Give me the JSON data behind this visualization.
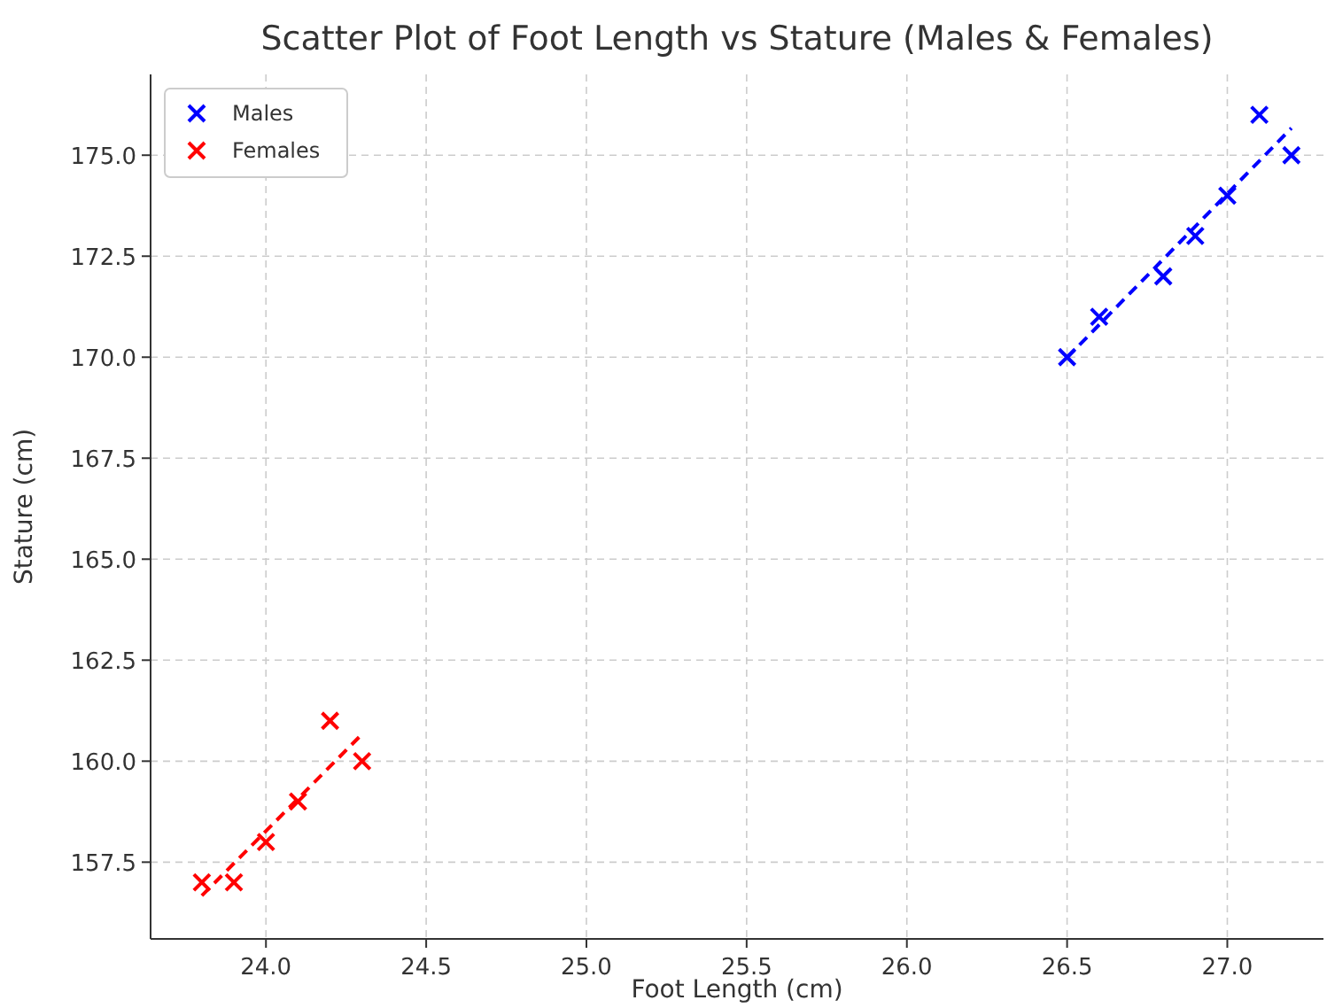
{
  "chart_data": {
    "type": "scatter",
    "title": "Scatter Plot of Foot Length vs Stature (Males & Females)",
    "xlabel": "Foot Length (cm)",
    "ylabel": "Stature (cm)",
    "xlim": [
      23.64,
      27.3
    ],
    "xticks": [
      {
        "value": 24,
        "label": "24.0"
      },
      24.5,
      {
        "value": 25,
        "label": "25.0"
      },
      25.5,
      {
        "value": 26,
        "label": "26.0"
      },
      26.5,
      {
        "value": 27,
        "label": "27.0"
      }
    ],
    "ylim": [
      155.6,
      177
    ],
    "yticks": [
      157.5,
      {
        "value": 160,
        "label": "160.0"
      },
      162.5,
      {
        "value": 165,
        "label": "165.0"
      },
      167.5,
      {
        "value": 170,
        "label": "170.0"
      },
      172.5,
      {
        "value": 175,
        "label": "175.0"
      }
    ],
    "grid": true,
    "legend": "top left",
    "marker": "cross",
    "series": [
      {
        "name": "Males",
        "color": "#0000ff",
        "x": [
          26.5,
          26.6,
          26.8,
          26.9,
          27.0,
          27.1,
          27.2
        ],
        "values": [
          170,
          171,
          172,
          173,
          174,
          176,
          175
        ]
      },
      {
        "name": "Females",
        "color": "#ff0000",
        "x": [
          23.8,
          23.9,
          24.0,
          24.1,
          24.2,
          24.3
        ],
        "values": [
          157,
          157,
          158,
          159,
          161,
          160
        ]
      },
      {
        "type": "line",
        "color": "#0000ff",
        "line_style": "dashed",
        "marker": "none",
        "x": [
          26.5,
          27.2
        ],
        "values": [
          169.99,
          175.67
        ]
      },
      {
        "type": "line",
        "color": "#ff0000",
        "line_style": "dashed",
        "marker": "none",
        "x": [
          23.8,
          24.3
        ],
        "values": [
          156.67,
          160.67
        ]
      }
    ]
  }
}
